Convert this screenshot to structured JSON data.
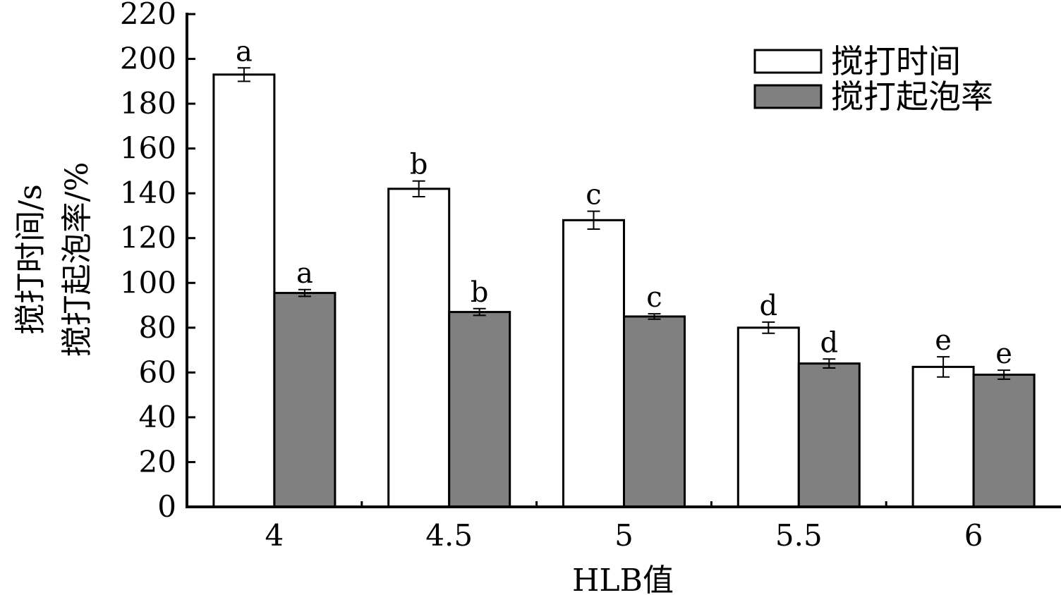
{
  "chart_data": {
    "type": "bar",
    "categories": [
      "4",
      "4.5",
      "5",
      "5.5",
      "6"
    ],
    "series": [
      {
        "name": "搅打时间",
        "color": "#ffffff",
        "values": [
          193,
          142,
          128,
          80,
          62.5
        ],
        "errors": [
          3,
          3.5,
          4,
          2.5,
          4.5
        ],
        "labels": [
          "a",
          "b",
          "c",
          "d",
          "e"
        ]
      },
      {
        "name": "搅打起泡率",
        "color": "#808080",
        "values": [
          95.5,
          87,
          85,
          64,
          59
        ],
        "errors": [
          1.5,
          1.5,
          1.2,
          2,
          2
        ]
      }
    ],
    "letters2": [
      "a",
      "b",
      "c",
      "d",
      "e"
    ],
    "ylim": [
      0,
      220
    ],
    "yticks": [
      0,
      20,
      40,
      60,
      80,
      100,
      120,
      140,
      160,
      180,
      200,
      220
    ],
    "xlabel": "HLB值",
    "ylabel_line1": "搅打时间/s",
    "ylabel_line2": "搅打起泡率/%",
    "legend_position": "top-right"
  }
}
